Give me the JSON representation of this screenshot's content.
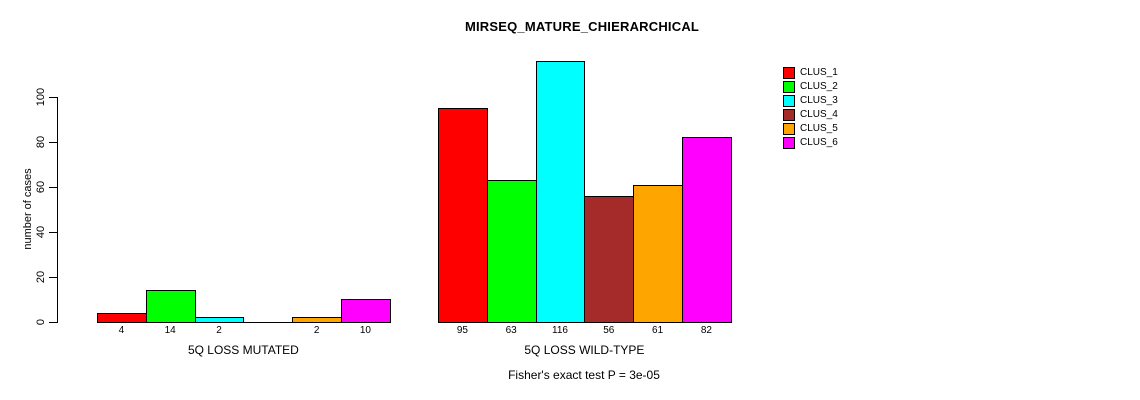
{
  "chart_data": {
    "type": "bar",
    "title": "MIRSEQ_MATURE_CHIERARCHICAL",
    "ylabel": "number of cases",
    "xlabel": "",
    "subtitle": "Fisher's exact test P = 3e-05",
    "ylim": [
      0,
      100
    ],
    "yticks": [
      0,
      20,
      40,
      60,
      80,
      100
    ],
    "grid": false,
    "legend_position": "top-right",
    "legend": [
      {
        "name": "CLUS_1",
        "color": "#FF0000"
      },
      {
        "name": "CLUS_2",
        "color": "#00FF00"
      },
      {
        "name": "CLUS_3",
        "color": "#00FFFF"
      },
      {
        "name": "CLUS_4",
        "color": "#A52A2A"
      },
      {
        "name": "CLUS_5",
        "color": "#FFA500"
      },
      {
        "name": "CLUS_6",
        "color": "#FF00FF"
      }
    ],
    "categories": [
      "5Q LOSS MUTATED",
      "5Q LOSS WILD-TYPE"
    ],
    "series": [
      {
        "name": "CLUS_1",
        "values": [
          4,
          95
        ]
      },
      {
        "name": "CLUS_2",
        "values": [
          14,
          63
        ]
      },
      {
        "name": "CLUS_3",
        "values": [
          2,
          116
        ]
      },
      {
        "name": "CLUS_4",
        "values": [
          0,
          56
        ]
      },
      {
        "name": "CLUS_5",
        "values": [
          2,
          61
        ]
      },
      {
        "name": "CLUS_6",
        "values": [
          10,
          82
        ]
      }
    ],
    "groups": [
      {
        "label": "5Q LOSS MUTATED",
        "values": [
          4,
          14,
          2,
          0,
          2,
          10
        ],
        "bar_labels": [
          "4",
          "14",
          "2",
          "",
          "2",
          "10"
        ]
      },
      {
        "label": "5Q LOSS WILD-TYPE",
        "values": [
          95,
          63,
          116,
          56,
          61,
          82
        ],
        "bar_labels": [
          "95",
          "63",
          "116",
          "56",
          "61",
          "82"
        ]
      }
    ]
  }
}
